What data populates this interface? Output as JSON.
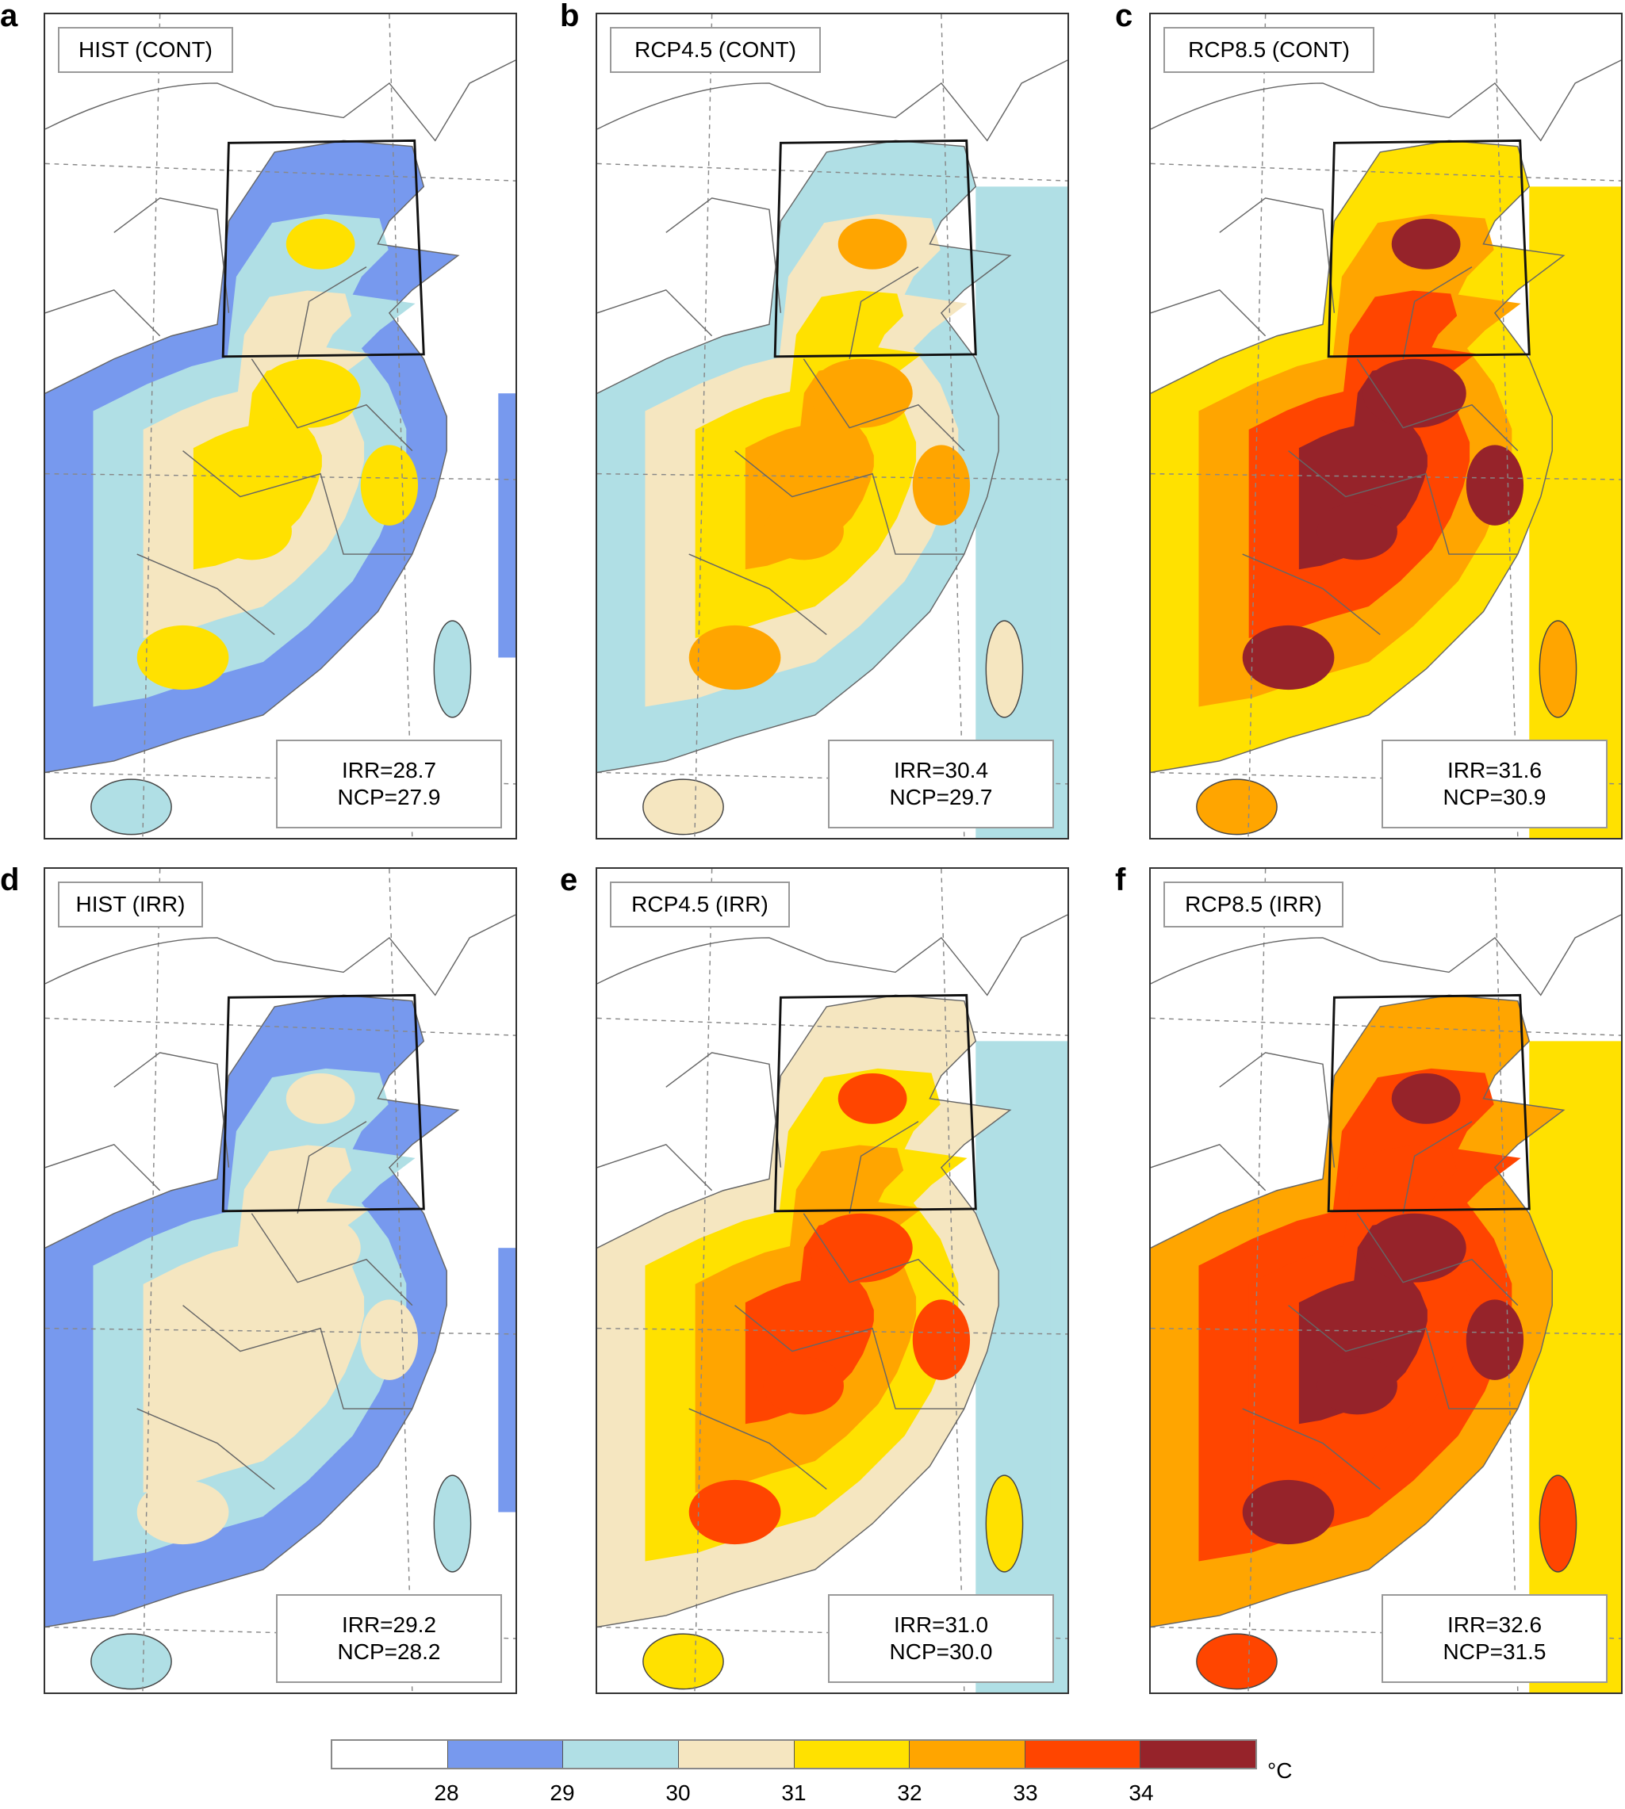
{
  "panels": [
    {
      "letter": "a",
      "title": "HIST (CONT)",
      "irr": "IRR=28.7",
      "ncp": "NCP=27.9",
      "ocean_level": 0,
      "land_levels": [
        1,
        2,
        3,
        4
      ]
    },
    {
      "letter": "b",
      "title": "RCP4.5 (CONT)",
      "irr": "IRR=30.4",
      "ncp": "NCP=29.7",
      "ocean_level": 2,
      "land_levels": [
        2,
        3,
        4,
        5
      ]
    },
    {
      "letter": "c",
      "title": "RCP8.5 (CONT)",
      "irr": "IRR=31.6",
      "ncp": "NCP=30.9",
      "ocean_level": 4,
      "land_levels": [
        4,
        5,
        6,
        7
      ]
    },
    {
      "letter": "d",
      "title": "HIST (IRR)",
      "irr": "IRR=29.2",
      "ncp": "NCP=28.2",
      "ocean_level": 0,
      "land_levels": [
        1,
        2,
        3,
        3
      ]
    },
    {
      "letter": "e",
      "title": "RCP4.5 (IRR)",
      "irr": "IRR=31.0",
      "ncp": "NCP=30.0",
      "ocean_level": 2,
      "land_levels": [
        3,
        4,
        5,
        6
      ]
    },
    {
      "letter": "f",
      "title": "RCP8.5 (IRR)",
      "irr": "IRR=32.6",
      "ncp": "NCP=31.5",
      "ocean_level": 4,
      "land_levels": [
        5,
        6,
        6,
        7
      ]
    }
  ],
  "colorbar": {
    "colors": [
      "#ffffff",
      "#7799ee",
      "#b0dfe5",
      "#f5e6c0",
      "#ffe100",
      "#ffa500",
      "#ff4500",
      "#96232a"
    ],
    "ticks": [
      "28",
      "29",
      "30",
      "31",
      "32",
      "33",
      "34"
    ],
    "unit": "°C"
  }
}
